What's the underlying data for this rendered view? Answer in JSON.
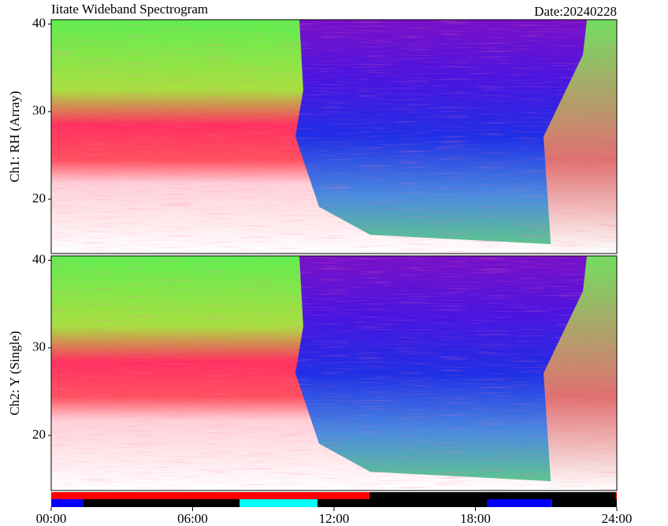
{
  "chart_data": {
    "type": "spectrogram",
    "title": "Iitate Wideband Spectrogram",
    "date_label": "Date:20240228",
    "xlim": [
      0,
      24
    ],
    "xticks": [
      {
        "value": 0,
        "label": "00:00"
      },
      {
        "value": 6,
        "label": "06:00"
      },
      {
        "value": 12,
        "label": "12:00"
      },
      {
        "value": 18,
        "label": "18:00"
      },
      {
        "value": 24,
        "label": "24:00"
      }
    ],
    "panels": [
      {
        "ylabel": "Ch1: RH (Array)",
        "ylim": [
          13.8,
          40.5
        ],
        "yticks": [
          20,
          30,
          40
        ]
      },
      {
        "ylabel": "Ch2: Y (Single)",
        "ylim": [
          13.7,
          40.5
        ],
        "yticks": [
          20,
          30,
          40
        ]
      }
    ],
    "status_bars": [
      {
        "segments": [
          {
            "start": 0,
            "end": 13.5,
            "color": "#ff0000"
          },
          {
            "start": 13.5,
            "end": 23.95,
            "color": "#000000"
          },
          {
            "start": 23.95,
            "end": 24,
            "color": "#ff0000"
          }
        ]
      },
      {
        "segments": [
          {
            "start": 0,
            "end": 1.35,
            "color": "#0000ff"
          },
          {
            "start": 1.35,
            "end": 8.0,
            "color": "#000000"
          },
          {
            "start": 8.0,
            "end": 11.3,
            "color": "#00ffff"
          },
          {
            "start": 11.3,
            "end": 18.5,
            "color": "#000000"
          },
          {
            "start": 18.5,
            "end": 21.25,
            "color": "#0000ff"
          },
          {
            "start": 21.25,
            "end": 24,
            "color": "#000000"
          }
        ]
      }
    ]
  }
}
